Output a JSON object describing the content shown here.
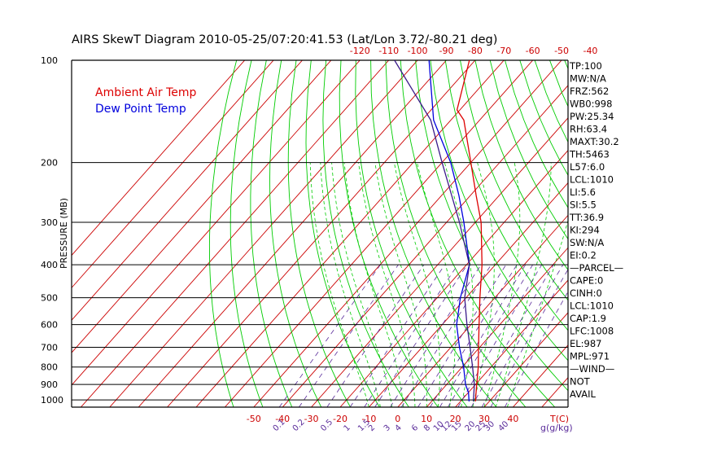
{
  "chart_data": {
    "type": "line",
    "title": "AIRS SkewT Diagram 2010-05-25/07:20:41.53 (Lat/Lon 3.72/-80.21 deg)",
    "ylabel": "PRESSURE (MB)",
    "xlabel_bottom_unit": "T(C)",
    "xlabel_mixing_unit": "g(g/kg)",
    "y_scale": "log",
    "ylim": [
      1050,
      100
    ],
    "pressure_ticks": [
      100,
      200,
      300,
      400,
      500,
      600,
      700,
      800,
      900,
      1000
    ],
    "pressure_ticks_shown": [
      "100",
      "200",
      "300",
      "400",
      "500",
      "600",
      "700",
      "800",
      "900",
      "1000"
    ],
    "top_temp_ticks": [
      -120,
      -110,
      -100,
      -90,
      -80,
      -70,
      -60,
      -50,
      -40
    ],
    "bottom_temp_ticks": [
      -50,
      -40,
      -30,
      -20,
      -10,
      0,
      10,
      20,
      30,
      40
    ],
    "mixing_ratio_labels": [
      "0.1",
      "0.2",
      "0.5",
      "1",
      "1.5",
      "2",
      "3",
      "4",
      "6",
      "8",
      "10",
      "12",
      "15",
      "20",
      "25",
      "30",
      "40"
    ],
    "legend": {
      "placement": "top-left",
      "entries": [
        {
          "label": "Ambient Air Temp",
          "color": "#dd0000"
        },
        {
          "label": "Dew Point Temp",
          "color": "#0000dd"
        }
      ]
    },
    "series": [
      {
        "name": "Ambient Air Temp",
        "color": "#dd0000",
        "points": [
          {
            "p": 1010,
            "t": 25.2
          },
          {
            "p": 970,
            "t": 23.5
          },
          {
            "p": 900,
            "t": 20.4
          },
          {
            "p": 800,
            "t": 15.6
          },
          {
            "p": 700,
            "t": 9.6
          },
          {
            "p": 600,
            "t": 2.8
          },
          {
            "p": 500,
            "t": -5.2
          },
          {
            "p": 400,
            "t": -14.6
          },
          {
            "p": 300,
            "t": -28.0
          },
          {
            "p": 250,
            "t": -38.0
          },
          {
            "p": 200,
            "t": -50.0
          },
          {
            "p": 150,
            "t": -65.5
          },
          {
            "p": 140,
            "t": -71.0
          },
          {
            "p": 100,
            "t": -82.0
          }
        ]
      },
      {
        "name": "Dew Point Temp",
        "color": "#0000dd",
        "points": [
          {
            "p": 1010,
            "t": 23.0
          },
          {
            "p": 950,
            "t": 20.0
          },
          {
            "p": 900,
            "t": 16.5
          },
          {
            "p": 800,
            "t": 10.5
          },
          {
            "p": 700,
            "t": 3.0
          },
          {
            "p": 600,
            "t": -5.0
          },
          {
            "p": 500,
            "t": -12.0
          },
          {
            "p": 400,
            "t": -19.0
          },
          {
            "p": 300,
            "t": -34.0
          },
          {
            "p": 250,
            "t": -44.0
          },
          {
            "p": 200,
            "t": -57.0
          },
          {
            "p": 150,
            "t": -76.0
          },
          {
            "p": 100,
            "t": -96.0
          }
        ]
      },
      {
        "name": "",
        "color": "#3a1a8a",
        "points": [
          {
            "p": 1010,
            "t": 24.5
          },
          {
            "p": 900,
            "t": 19.6
          },
          {
            "p": 800,
            "t": 13.6
          },
          {
            "p": 700,
            "t": 6.7
          },
          {
            "p": 600,
            "t": -1.4
          },
          {
            "p": 500,
            "t": -10.5
          },
          {
            "p": 400,
            "t": -19.0
          },
          {
            "p": 300,
            "t": -35.5
          },
          {
            "p": 250,
            "t": -46.5
          },
          {
            "p": 200,
            "t": -60.0
          },
          {
            "p": 150,
            "t": -77.0
          },
          {
            "p": 100,
            "t": -108.0
          }
        ]
      }
    ],
    "indices": [
      "TP:100",
      "MW:N/A",
      "FRZ:562",
      "WB0:998",
      "PW:25.34",
      "RH:63.4",
      "MAXT:30.2",
      "TH:5463",
      "L57:6.0",
      "LCL:1010",
      "LI:5.6",
      "SI:5.5",
      "TT:36.9",
      "KI:294",
      "SW:N/A",
      "EI:0.2",
      "—PARCEL—",
      "CAPE:0",
      "CINH:0",
      "LCL:1010",
      "CAP:1.9",
      "LFC:1008",
      "EL:987",
      "MPL:971",
      "—WIND—",
      "NOT",
      "AVAIL"
    ],
    "colors": {
      "isotherm": "#cc0000",
      "dry_adiabat": "#00cc00",
      "moist_adiabat": "#00cc00",
      "mixing_ratio": "#5a2c9a",
      "isobar": "#000000",
      "tick_labels": "#cc0000",
      "mixing_labels": "#5a2c9a"
    }
  }
}
